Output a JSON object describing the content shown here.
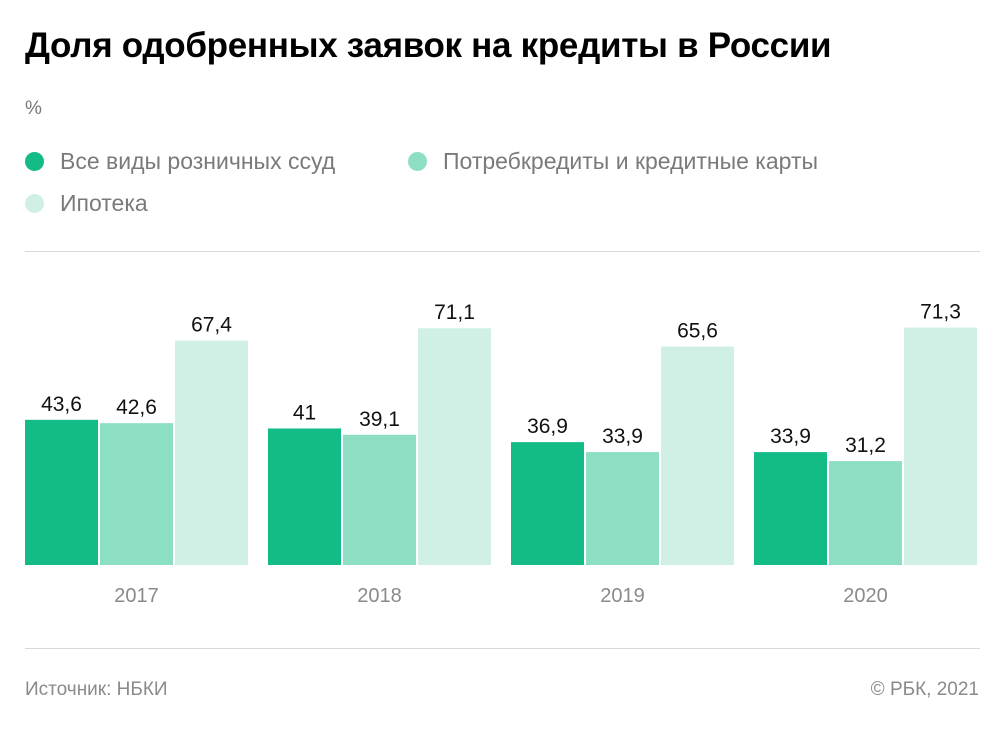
{
  "title": "Доля одобренных заявок на кредиты в России",
  "unit": "%",
  "source": "Источник:  НБКИ",
  "copyright": "©  РБК, 2021",
  "chart_data": {
    "type": "bar",
    "title": "Доля одобренных заявок на кредиты в России",
    "ylabel": "%",
    "categories": [
      "2017",
      "2018",
      "2019",
      "2020"
    ],
    "series": [
      {
        "name": "Все виды розничных ссуд",
        "color": "#13bb87",
        "values": [
          43.6,
          41,
          36.9,
          33.9
        ],
        "labels": [
          "43,6",
          "41",
          "36,9",
          "33,9"
        ]
      },
      {
        "name": "Потребкредиты и кредитные карты",
        "color": "#8cdfc3",
        "values": [
          42.6,
          39.1,
          33.9,
          31.2
        ],
        "labels": [
          "42,6",
          "39,1",
          "33,9",
          "31,2"
        ]
      },
      {
        "name": "Ипотека",
        "color": "#d1f0e5",
        "values": [
          67.4,
          71.1,
          65.6,
          71.3
        ],
        "labels": [
          "67,4",
          "71,1",
          "65,6",
          "71,3"
        ]
      }
    ],
    "ylim": [
      0,
      80
    ],
    "grid": false,
    "legend_position": "top"
  }
}
